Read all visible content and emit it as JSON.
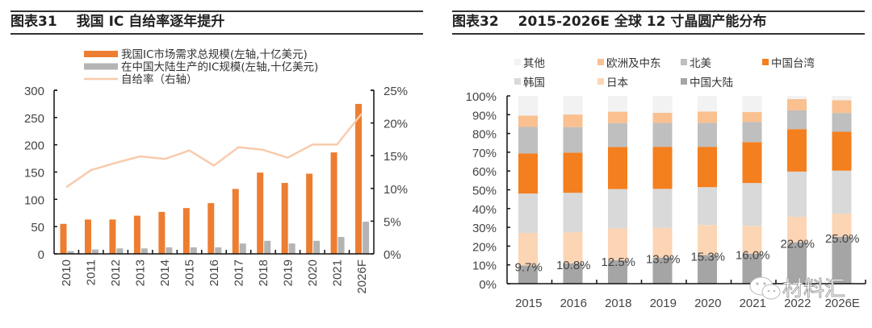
{
  "figures": [
    {
      "number": "图表31",
      "title": "我国 IC 自给率逐年提升"
    },
    {
      "number": "图表32",
      "title": "2015-2026E 全球 12 寸晶圆产能分布"
    }
  ],
  "watermark": {
    "icon": "wechat-icon",
    "text": "材料汇"
  },
  "chart_data": [
    {
      "type": "bar",
      "title": "我国 IC 自给率逐年提升",
      "categories": [
        "2010",
        "2011",
        "2012",
        "2013",
        "2014",
        "2015",
        "2016",
        "2017",
        "2018",
        "2019",
        "2020",
        "2021",
        "2026F"
      ],
      "series": [
        {
          "name": "我国IC市场需求总规模(左轴,十亿美元)",
          "type": "bar",
          "axis": "left",
          "color": "#ED7D31",
          "values": [
            55,
            63,
            63,
            70,
            77,
            84,
            93,
            119,
            149,
            130,
            147,
            186,
            275
          ]
        },
        {
          "name": "在中国大陆生产的IC规模(左轴,十亿美元)",
          "type": "bar",
          "axis": "left",
          "color": "#B4B4B4",
          "values": [
            5,
            8,
            10,
            10,
            12,
            12,
            12,
            19,
            24,
            19,
            24,
            31,
            59
          ]
        },
        {
          "name": "自给率（右轴）",
          "type": "line",
          "axis": "right",
          "color": "#F8CBAD",
          "values": [
            10.2,
            12.8,
            13.9,
            14.9,
            14.5,
            15.8,
            13.5,
            16.3,
            15.9,
            14.7,
            16.7,
            16.7,
            21.4
          ]
        }
      ],
      "left_axis": {
        "ylim": [
          0,
          300
        ],
        "ticks": [
          "0",
          "50",
          "100",
          "150",
          "200",
          "250",
          "300"
        ]
      },
      "right_axis": {
        "ylim": [
          0,
          25
        ],
        "ticks": [
          "0%",
          "5%",
          "10%",
          "15%",
          "20%",
          "25%"
        ]
      },
      "xlabel": "",
      "ylabel": "",
      "legend": "top-left",
      "grid": false
    },
    {
      "type": "bar",
      "stacked": true,
      "title": "2015-2026E 全球 12 寸晶圆产能分布",
      "categories": [
        "2015",
        "2016",
        "2018",
        "2019",
        "2020",
        "2021",
        "2022",
        "2026E"
      ],
      "series": [
        {
          "name": "中国大陆",
          "color": "#A5A5A5",
          "values": [
            9.7,
            10.8,
            12.5,
            13.9,
            15.3,
            16.0,
            22.0,
            25.0
          ]
        },
        {
          "name": "日本",
          "color": "#FCD5B4",
          "values": [
            17.3,
            16.6,
            16.9,
            15.8,
            15.9,
            14.8,
            13.6,
            12.3
          ]
        },
        {
          "name": "韩国",
          "color": "#D9D9D9",
          "values": [
            21.0,
            21.0,
            21.0,
            20.8,
            20.2,
            22.8,
            24.1,
            22.9
          ]
        },
        {
          "name": "中国台湾",
          "color": "#F47F1E",
          "values": [
            21.3,
            21.4,
            22.4,
            22.4,
            21.5,
            21.8,
            22.6,
            20.7
          ]
        },
        {
          "name": "北美",
          "color": "#BFBFBF",
          "values": [
            14.2,
            13.6,
            12.7,
            12.7,
            12.7,
            10.7,
            10.0,
            10.0
          ]
        },
        {
          "name": "欧洲及中东",
          "color": "#FAC090",
          "values": [
            6.0,
            6.7,
            6.1,
            5.4,
            6.1,
            5.3,
            6.0,
            6.8
          ]
        },
        {
          "name": "其他",
          "color": "#F2F2F2",
          "values": [
            10.5,
            9.9,
            8.4,
            9.0,
            8.3,
            8.6,
            1.7,
            2.3
          ]
        }
      ],
      "data_labels": [
        "9.7%",
        "10.8%",
        "12.5%",
        "13.9%",
        "15.3%",
        "16.0%",
        "22.0%",
        "25.0%"
      ],
      "ylim": [
        0,
        100
      ],
      "yticks": [
        "0%",
        "10%",
        "20%",
        "30%",
        "40%",
        "50%",
        "60%",
        "70%",
        "80%",
        "90%",
        "100%"
      ],
      "legend_order": [
        "其他",
        "欧洲及中东",
        "北美",
        "中国台湾",
        "韩国",
        "日本",
        "中国大陆"
      ],
      "legend": "top",
      "grid": false
    }
  ]
}
